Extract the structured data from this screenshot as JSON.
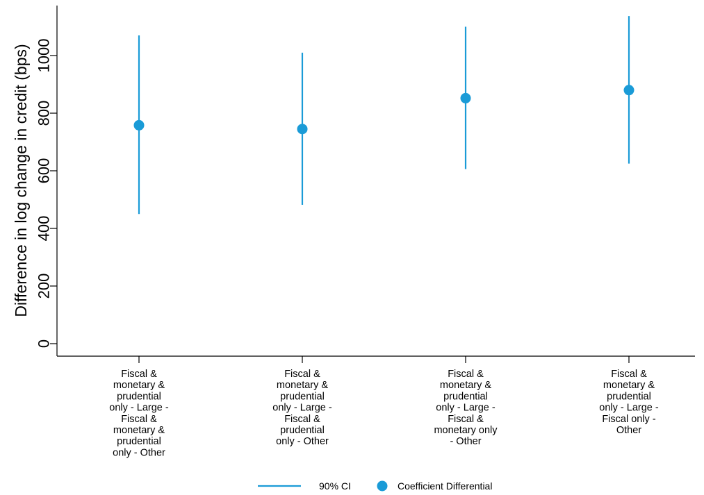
{
  "chart_data": {
    "type": "scatter",
    "ylabel": "Difference in log change in credit (bps)",
    "ylim": [
      0,
      1130
    ],
    "yticks": [
      0,
      200,
      400,
      600,
      800,
      1000
    ],
    "categories": [
      [
        "Fiscal &",
        "monetary &",
        "prudential",
        "only - Large -",
        "Fiscal &",
        "monetary &",
        "prudential",
        "only - Other"
      ],
      [
        "Fiscal &",
        "monetary &",
        "prudential",
        "only - Large -",
        "Fiscal &",
        "prudential",
        "only - Other"
      ],
      [
        "Fiscal &",
        "monetary &",
        "prudential",
        "only - Large -",
        "Fiscal &",
        "monetary only",
        "- Other"
      ],
      [
        "Fiscal &",
        "monetary &",
        "prudential",
        "only - Large -",
        "Fiscal only -",
        "Other"
      ]
    ],
    "series": [
      {
        "name": "Coefficient Differential",
        "values": [
          758,
          745,
          852,
          880
        ]
      },
      {
        "name": "90% CI",
        "lower": [
          450,
          482,
          606,
          625
        ],
        "upper": [
          1070,
          1010,
          1100,
          1137
        ]
      }
    ],
    "legend": [
      "90% CI",
      "Coefficient Differential"
    ],
    "legend_position": "bottom",
    "grid": false,
    "colors": {
      "marker": "#1a9bd7",
      "axis": "#000000"
    }
  }
}
